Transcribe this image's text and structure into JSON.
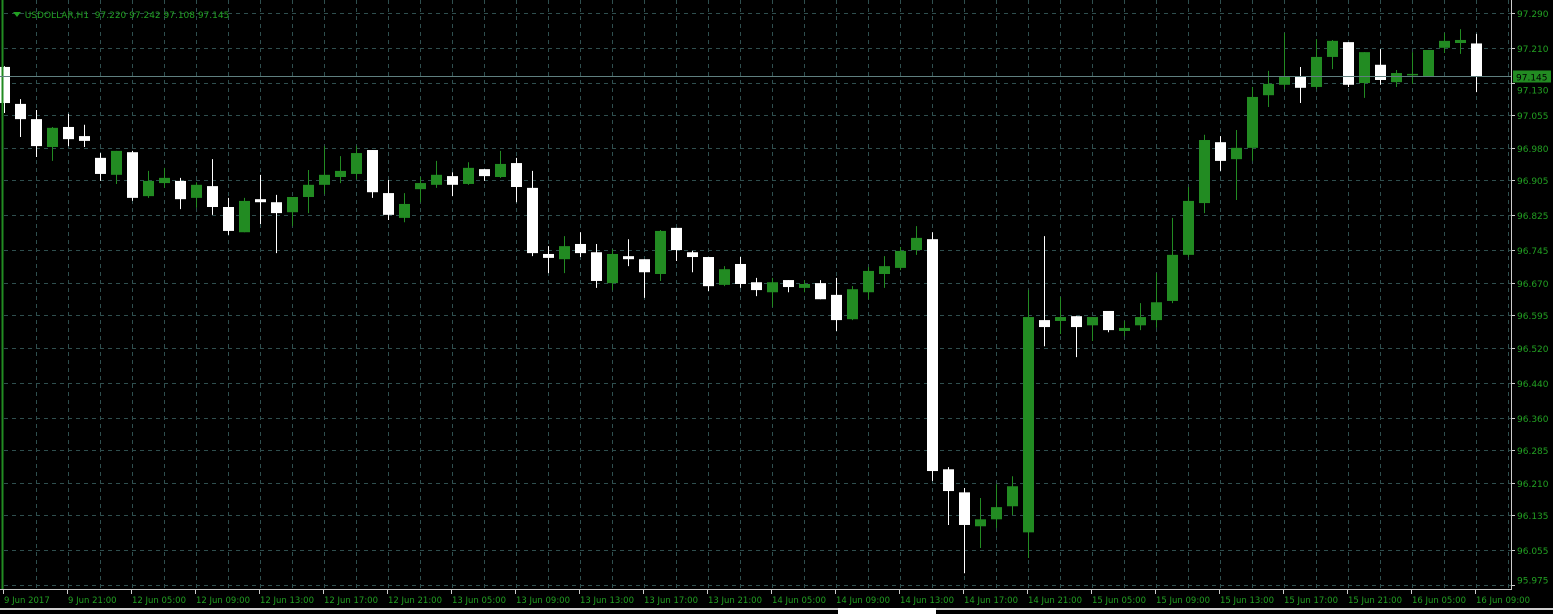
{
  "header": {
    "symbol_timeframe": "USDOLLAR,H1",
    "ohlc_readout": "97.220 97.242 97.108 97.145"
  },
  "colors": {
    "background": "#000000",
    "grid": "#2f4f4f",
    "bull_candle": "#228b22",
    "bear_candle": "#ffffff",
    "axis_text": "#22a022",
    "price_label_bg": "#228b22"
  },
  "chart_data": {
    "type": "candlestick",
    "title": "USDOLLAR,H1",
    "current_price": "97.145",
    "ylim": [
      95.975,
      97.29
    ],
    "grid": true,
    "y_ticks": [
      "97.290",
      "97.210",
      "97.130",
      "97.055",
      "96.980",
      "96.905",
      "96.825",
      "96.745",
      "96.670",
      "96.595",
      "96.520",
      "96.440",
      "96.360",
      "96.285",
      "96.210",
      "96.135",
      "96.055",
      "95.975"
    ],
    "x_ticks": [
      "9 Jun 2017",
      "9 Jun 21:00",
      "12 Jun 05:00",
      "12 Jun 09:00",
      "12 Jun 13:00",
      "12 Jun 17:00",
      "12 Jun 21:00",
      "13 Jun 05:00",
      "13 Jun 09:00",
      "13 Jun 13:00",
      "13 Jun 17:00",
      "13 Jun 21:00",
      "14 Jun 05:00",
      "14 Jun 09:00",
      "14 Jun 13:00",
      "14 Jun 17:00",
      "14 Jun 21:00",
      "15 Jun 05:00",
      "15 Jun 09:00",
      "15 Jun 13:00",
      "15 Jun 17:00",
      "15 Jun 21:00",
      "16 Jun 05:00",
      "16 Jun 09:00"
    ],
    "bars_per_x_tick": 4,
    "ohlc": [
      [
        97.166,
        97.168,
        97.06,
        97.083
      ],
      [
        97.081,
        97.092,
        97.005,
        97.046
      ],
      [
        97.046,
        97.067,
        96.959,
        96.984
      ],
      [
        96.982,
        97.028,
        96.95,
        97.026
      ],
      [
        97.028,
        97.058,
        96.984,
        97.0
      ],
      [
        97.007,
        97.033,
        96.982,
        96.996
      ],
      [
        96.957,
        96.968,
        96.904,
        96.92
      ],
      [
        96.918,
        96.973,
        96.897,
        96.973
      ],
      [
        96.97,
        96.973,
        96.858,
        96.865
      ],
      [
        96.869,
        96.927,
        96.865,
        96.904
      ],
      [
        96.899,
        96.934,
        96.888,
        96.911
      ],
      [
        96.904,
        96.911,
        96.839,
        96.862
      ],
      [
        96.865,
        96.901,
        96.842,
        96.895
      ],
      [
        96.892,
        96.954,
        96.826,
        96.844
      ],
      [
        96.844,
        96.865,
        96.78,
        96.789
      ],
      [
        96.786,
        96.865,
        96.786,
        96.858
      ],
      [
        96.862,
        96.918,
        96.805,
        96.855
      ],
      [
        96.855,
        96.872,
        96.738,
        96.83
      ],
      [
        96.832,
        96.867,
        96.8,
        96.867
      ],
      [
        96.867,
        96.929,
        96.83,
        96.895
      ],
      [
        96.895,
        96.984,
        96.874,
        96.918
      ],
      [
        96.913,
        96.961,
        96.899,
        96.927
      ],
      [
        96.92,
        96.984,
        96.908,
        96.968
      ],
      [
        96.975,
        96.975,
        96.865,
        96.878
      ],
      [
        96.876,
        96.906,
        96.814,
        96.826
      ],
      [
        96.819,
        96.876,
        96.809,
        96.851
      ],
      [
        96.885,
        96.913,
        96.855,
        96.899
      ],
      [
        96.895,
        96.95,
        96.888,
        96.918
      ],
      [
        96.915,
        96.924,
        96.869,
        96.895
      ],
      [
        96.897,
        96.947,
        96.895,
        96.934
      ],
      [
        96.931,
        96.931,
        96.904,
        96.915
      ],
      [
        96.913,
        96.973,
        96.911,
        96.943
      ],
      [
        96.945,
        96.957,
        96.855,
        96.89
      ],
      [
        96.888,
        96.927,
        96.731,
        96.738
      ],
      [
        96.736,
        96.754,
        96.692,
        96.727
      ],
      [
        96.724,
        96.777,
        96.692,
        96.754
      ],
      [
        96.759,
        96.786,
        96.729,
        96.738
      ],
      [
        96.74,
        96.759,
        96.658,
        96.674
      ],
      [
        96.669,
        96.747,
        96.653,
        96.736
      ],
      [
        96.731,
        96.77,
        96.708,
        96.724
      ],
      [
        96.724,
        96.724,
        96.635,
        96.694
      ],
      [
        96.69,
        96.791,
        96.674,
        96.789
      ],
      [
        96.796,
        96.796,
        96.72,
        96.745
      ],
      [
        96.74,
        96.743,
        96.694,
        96.729
      ],
      [
        96.729,
        96.729,
        96.651,
        96.662
      ],
      [
        96.665,
        96.708,
        96.662,
        96.701
      ],
      [
        96.713,
        96.729,
        96.658,
        96.667
      ],
      [
        96.671,
        96.681,
        96.639,
        96.653
      ],
      [
        96.648,
        96.681,
        96.614,
        96.671
      ],
      [
        96.676,
        96.676,
        96.648,
        96.66
      ],
      [
        96.658,
        96.676,
        96.648,
        96.667
      ],
      [
        96.669,
        96.676,
        96.632,
        96.632
      ],
      [
        96.642,
        96.681,
        96.559,
        96.584
      ],
      [
        96.586,
        96.662,
        96.584,
        96.655
      ],
      [
        96.648,
        96.706,
        96.632,
        96.697
      ],
      [
        96.69,
        96.731,
        96.658,
        96.708
      ],
      [
        96.704,
        96.752,
        96.699,
        96.743
      ],
      [
        96.745,
        96.8,
        96.734,
        96.773
      ],
      [
        96.77,
        96.786,
        96.214,
        96.237
      ],
      [
        96.241,
        96.246,
        96.113,
        96.191
      ],
      [
        96.188,
        96.198,
        96.002,
        96.113
      ],
      [
        96.11,
        96.175,
        96.06,
        96.126
      ],
      [
        96.126,
        96.207,
        96.106,
        96.154
      ],
      [
        96.156,
        96.225,
        96.136,
        96.202
      ],
      [
        96.096,
        96.653,
        96.037,
        96.591
      ],
      [
        96.584,
        96.777,
        96.524,
        96.568
      ],
      [
        96.582,
        96.637,
        96.552,
        96.591
      ],
      [
        96.593,
        96.593,
        96.499,
        96.568
      ],
      [
        96.572,
        96.591,
        96.536,
        96.591
      ],
      [
        96.605,
        96.605,
        96.556,
        96.561
      ],
      [
        96.559,
        96.582,
        96.547,
        96.566
      ],
      [
        96.572,
        96.623,
        96.561,
        96.591
      ],
      [
        96.584,
        96.692,
        96.566,
        96.625
      ],
      [
        96.628,
        96.819,
        96.623,
        96.734
      ],
      [
        96.734,
        96.89,
        96.729,
        96.858
      ],
      [
        96.853,
        97.01,
        96.83,
        96.998
      ],
      [
        96.993,
        97.007,
        96.927,
        96.95
      ],
      [
        96.954,
        97.021,
        96.86,
        96.98
      ],
      [
        96.98,
        97.12,
        96.95,
        97.097
      ],
      [
        97.101,
        97.157,
        97.074,
        97.127
      ],
      [
        97.125,
        97.244,
        97.115,
        97.145
      ],
      [
        97.143,
        97.166,
        97.083,
        97.118
      ],
      [
        97.12,
        97.23,
        97.115,
        97.189
      ],
      [
        97.189,
        97.228,
        97.161,
        97.226
      ],
      [
        97.223,
        97.223,
        97.12,
        97.125
      ],
      [
        97.129,
        97.2,
        97.095,
        97.2
      ],
      [
        97.171,
        97.207,
        97.125,
        97.136
      ],
      [
        97.131,
        97.159,
        97.12,
        97.152
      ],
      [
        97.148,
        97.2,
        97.127,
        97.15
      ],
      [
        97.145,
        97.205,
        97.145,
        97.205
      ],
      [
        97.21,
        97.244,
        97.198,
        97.226
      ],
      [
        97.221,
        97.253,
        97.196,
        97.228
      ],
      [
        97.22,
        97.242,
        97.108,
        97.145
      ]
    ]
  }
}
